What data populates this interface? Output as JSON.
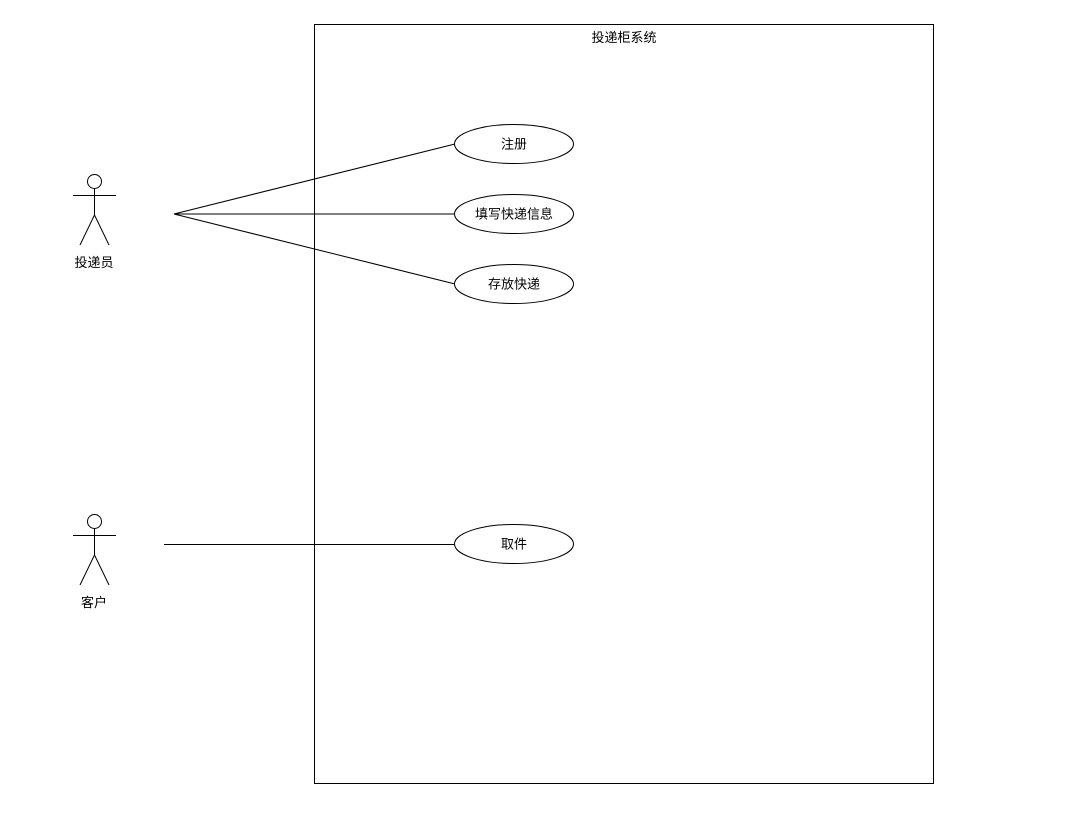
{
  "system": {
    "title": "投递柜系统"
  },
  "actors": [
    {
      "id": "courier",
      "name": "投递员"
    },
    {
      "id": "customer",
      "name": "客户"
    }
  ],
  "use_cases": [
    {
      "id": "register",
      "label": "注册"
    },
    {
      "id": "fill-info",
      "label": "填写快递信息"
    },
    {
      "id": "store",
      "label": "存放快递"
    },
    {
      "id": "pickup",
      "label": "取件"
    }
  ],
  "associations": [
    {
      "from": "courier",
      "to": "register"
    },
    {
      "from": "courier",
      "to": "fill-info"
    },
    {
      "from": "courier",
      "to": "store"
    },
    {
      "from": "customer",
      "to": "pickup"
    }
  ],
  "colors": {
    "line": "#000000",
    "background": "#ffffff"
  }
}
